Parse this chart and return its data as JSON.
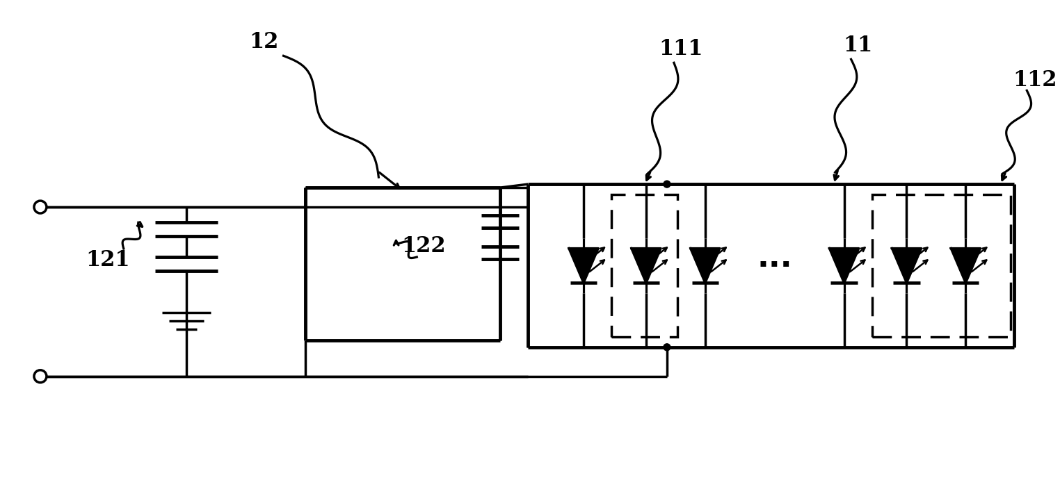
{
  "bg_color": "#ffffff",
  "line_color": "#000000",
  "lw": 2.5,
  "tlw": 3.5,
  "fig_width": 15.24,
  "fig_height": 7.04,
  "label_fontsize": 22
}
